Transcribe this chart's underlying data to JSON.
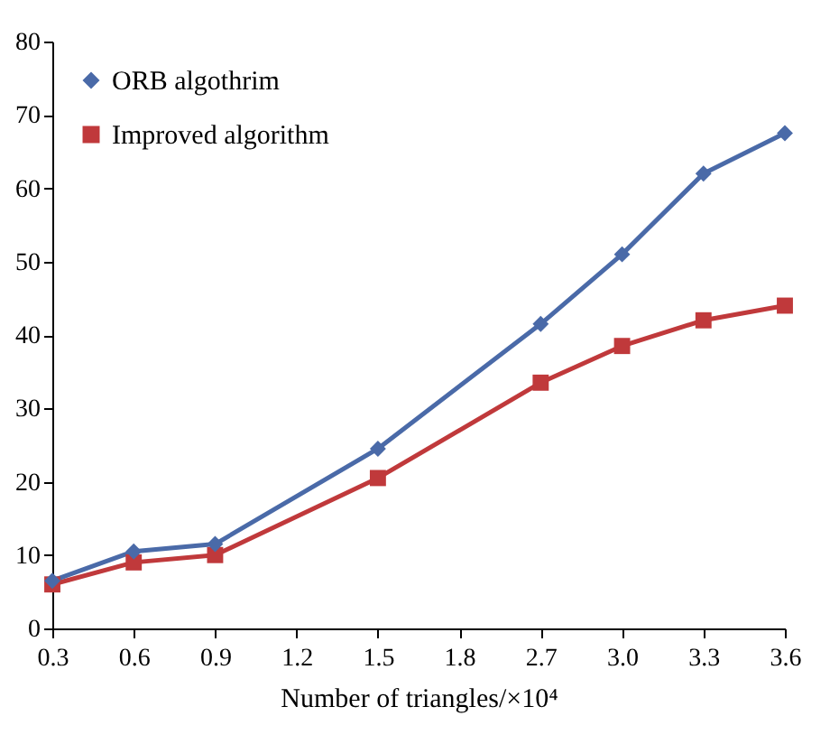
{
  "chart_data": {
    "type": "line",
    "xlabel": "Number of triangles/×10⁴",
    "categories": [
      "0.3",
      "0.6",
      "0.9",
      "1.2",
      "1.5",
      "1.8",
      "2.7",
      "3.0",
      "3.3",
      "3.6"
    ],
    "series": [
      {
        "name": "ORB algothrim",
        "color": "#4a6aa8",
        "marker": "diamond",
        "values": [
          6.5,
          10.5,
          11.5,
          null,
          24.5,
          null,
          41.5,
          51,
          62,
          67.5
        ]
      },
      {
        "name": "Improved algorithm",
        "color": "#c0393b",
        "marker": "square",
        "values": [
          6,
          9,
          10,
          null,
          20.5,
          null,
          33.5,
          38.5,
          42,
          44
        ]
      }
    ],
    "ylim": [
      0,
      80
    ],
    "yticks": [
      0,
      10,
      20,
      30,
      40,
      50,
      60,
      70,
      80
    ],
    "grid": false,
    "legend": "top left",
    "line_style": "solid"
  }
}
